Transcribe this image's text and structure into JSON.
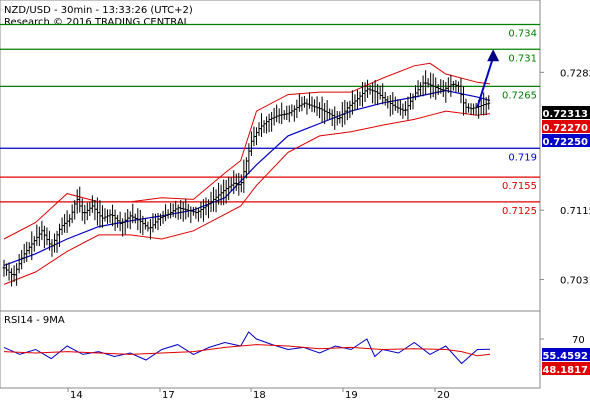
{
  "chart_data": [
    {
      "type": "candlestick",
      "title": "NZD/USD - 30min - 13:33:26 (UTC+2)",
      "subtitle": "Research © 2016 TRADING CENTRAL",
      "ylim": [
        0.7,
        0.736
      ],
      "y_ticks": [
        "0.7282",
        "0.7115",
        "0.7031"
      ],
      "x_ticks": [
        "14",
        "17",
        "18",
        "19",
        "20"
      ],
      "grid": false,
      "price_path": [
        [
          0,
          0.7045
        ],
        [
          6,
          0.7035
        ],
        [
          12,
          0.706
        ],
        [
          18,
          0.7075
        ],
        [
          24,
          0.709
        ],
        [
          30,
          0.707
        ],
        [
          36,
          0.7095
        ],
        [
          42,
          0.7105
        ],
        [
          46,
          0.713
        ],
        [
          50,
          0.711
        ],
        [
          56,
          0.712
        ],
        [
          62,
          0.7105
        ],
        [
          68,
          0.711
        ],
        [
          74,
          0.7098
        ],
        [
          80,
          0.7108
        ],
        [
          86,
          0.7102
        ],
        [
          92,
          0.7092
        ],
        [
          98,
          0.7105
        ],
        [
          104,
          0.711
        ],
        [
          110,
          0.7118
        ],
        [
          116,
          0.7115
        ],
        [
          122,
          0.7112
        ],
        [
          128,
          0.712
        ],
        [
          134,
          0.713
        ],
        [
          140,
          0.714
        ],
        [
          146,
          0.7148
        ],
        [
          150,
          0.7145
        ],
        [
          153,
          0.717
        ],
        [
          157,
          0.72
        ],
        [
          162,
          0.7215
        ],
        [
          168,
          0.7225
        ],
        [
          174,
          0.723
        ],
        [
          180,
          0.7232
        ],
        [
          186,
          0.724
        ],
        [
          190,
          0.7245
        ],
        [
          194,
          0.7242
        ],
        [
          200,
          0.7238
        ],
        [
          206,
          0.7232
        ],
        [
          212,
          0.7225
        ],
        [
          218,
          0.724
        ],
        [
          224,
          0.725
        ],
        [
          230,
          0.7262
        ],
        [
          236,
          0.7258
        ],
        [
          242,
          0.7248
        ],
        [
          248,
          0.724
        ],
        [
          254,
          0.7235
        ],
        [
          260,
          0.7255
        ],
        [
          266,
          0.727
        ],
        [
          272,
          0.7265
        ],
        [
          278,
          0.726
        ],
        [
          284,
          0.7268
        ],
        [
          288,
          0.7265
        ],
        [
          292,
          0.724
        ],
        [
          296,
          0.7238
        ],
        [
          300,
          0.724
        ],
        [
          304,
          0.7243
        ],
        [
          308,
          0.7245
        ]
      ],
      "moving_average": [
        [
          0,
          0.7048
        ],
        [
          20,
          0.7062
        ],
        [
          40,
          0.708
        ],
        [
          60,
          0.7095
        ],
        [
          80,
          0.7102
        ],
        [
          100,
          0.7108
        ],
        [
          120,
          0.7115
        ],
        [
          140,
          0.713
        ],
        [
          160,
          0.717
        ],
        [
          180,
          0.7205
        ],
        [
          200,
          0.722
        ],
        [
          220,
          0.7235
        ],
        [
          240,
          0.7245
        ],
        [
          260,
          0.7252
        ],
        [
          280,
          0.726
        ],
        [
          300,
          0.7252
        ],
        [
          308,
          0.7248
        ]
      ],
      "bollinger_upper": [
        [
          0,
          0.708
        ],
        [
          20,
          0.71
        ],
        [
          40,
          0.7135
        ],
        [
          60,
          0.7125
        ],
        [
          80,
          0.7125
        ],
        [
          100,
          0.713
        ],
        [
          120,
          0.7128
        ],
        [
          140,
          0.716
        ],
        [
          150,
          0.7175
        ],
        [
          160,
          0.7235
        ],
        [
          180,
          0.7255
        ],
        [
          200,
          0.7258
        ],
        [
          220,
          0.7258
        ],
        [
          240,
          0.7275
        ],
        [
          260,
          0.729
        ],
        [
          270,
          0.7293
        ],
        [
          280,
          0.728
        ],
        [
          300,
          0.727
        ],
        [
          308,
          0.7268
        ]
      ],
      "bollinger_lower": [
        [
          0,
          0.7025
        ],
        [
          20,
          0.704
        ],
        [
          40,
          0.7065
        ],
        [
          60,
          0.7085
        ],
        [
          80,
          0.7085
        ],
        [
          100,
          0.708
        ],
        [
          120,
          0.709
        ],
        [
          140,
          0.711
        ],
        [
          150,
          0.712
        ],
        [
          160,
          0.7145
        ],
        [
          180,
          0.7185
        ],
        [
          200,
          0.7205
        ],
        [
          220,
          0.721
        ],
        [
          240,
          0.7218
        ],
        [
          260,
          0.7225
        ],
        [
          270,
          0.723
        ],
        [
          280,
          0.7235
        ],
        [
          300,
          0.723
        ],
        [
          308,
          0.7232
        ]
      ],
      "projection": {
        "from": [
          300,
          0.724
        ],
        "to": [
          310,
          0.731
        ]
      },
      "levels": [
        {
          "value": 0.734,
          "label": "0.734",
          "color": "#008000"
        },
        {
          "value": 0.731,
          "label": "0.731",
          "color": "#008000"
        },
        {
          "value": 0.7265,
          "label": "0.7265",
          "color": "#008000"
        },
        {
          "value": 0.719,
          "label": "0.719",
          "color": "#0000c8"
        },
        {
          "value": 0.7155,
          "label": "0.7155",
          "color": "#e00000"
        },
        {
          "value": 0.7125,
          "label": "0.7125",
          "color": "#e00000"
        }
      ],
      "price_tags": [
        {
          "value": 0.72313,
          "label": "0.72313",
          "bg": "#000000",
          "fg": "#ffffff"
        },
        {
          "value": 0.7227,
          "label": "0.72270",
          "bg": "#e00000",
          "fg": "#ffffff"
        },
        {
          "value": 0.7225,
          "label": "0.72250",
          "bg": "#0000c8",
          "fg": "#ffffff"
        }
      ]
    },
    {
      "type": "line",
      "title": "RSI14 - 9MA",
      "ylim": [
        0,
        100
      ],
      "y_ticks": [
        "70"
      ],
      "rsi": [
        [
          0,
          58
        ],
        [
          10,
          48
        ],
        [
          20,
          55
        ],
        [
          30,
          42
        ],
        [
          40,
          60
        ],
        [
          50,
          48
        ],
        [
          60,
          52
        ],
        [
          70,
          45
        ],
        [
          80,
          50
        ],
        [
          90,
          40
        ],
        [
          100,
          55
        ],
        [
          110,
          62
        ],
        [
          120,
          48
        ],
        [
          130,
          58
        ],
        [
          140,
          65
        ],
        [
          150,
          60
        ],
        [
          155,
          80
        ],
        [
          160,
          70
        ],
        [
          170,
          62
        ],
        [
          180,
          55
        ],
        [
          190,
          58
        ],
        [
          200,
          50
        ],
        [
          210,
          60
        ],
        [
          220,
          55
        ],
        [
          230,
          70
        ],
        [
          235,
          45
        ],
        [
          240,
          55
        ],
        [
          250,
          50
        ],
        [
          260,
          65
        ],
        [
          270,
          48
        ],
        [
          280,
          60
        ],
        [
          290,
          35
        ],
        [
          300,
          55
        ],
        [
          308,
          55.4592
        ]
      ],
      "rsi_ma": [
        [
          0,
          52
        ],
        [
          20,
          50
        ],
        [
          40,
          52
        ],
        [
          60,
          50
        ],
        [
          80,
          48
        ],
        [
          100,
          50
        ],
        [
          120,
          52
        ],
        [
          140,
          58
        ],
        [
          160,
          62
        ],
        [
          180,
          60
        ],
        [
          200,
          56
        ],
        [
          220,
          58
        ],
        [
          240,
          55
        ],
        [
          260,
          56
        ],
        [
          280,
          55
        ],
        [
          290,
          52
        ],
        [
          300,
          46
        ],
        [
          308,
          48.1817
        ]
      ],
      "price_tags": [
        {
          "value": 55.4592,
          "label": "55.4592",
          "bg": "#0000c8",
          "fg": "#ffffff"
        },
        {
          "value": 48.1817,
          "label": "48.1817",
          "bg": "#e00000",
          "fg": "#ffffff"
        }
      ]
    }
  ],
  "colors": {
    "price": "#000000",
    "moving_average": "#0000c8",
    "bollinger": "#e00000",
    "projection": "#0000c8",
    "rsi": "#0000c8",
    "rsi_ma": "#e00000",
    "frame": "#888888"
  }
}
